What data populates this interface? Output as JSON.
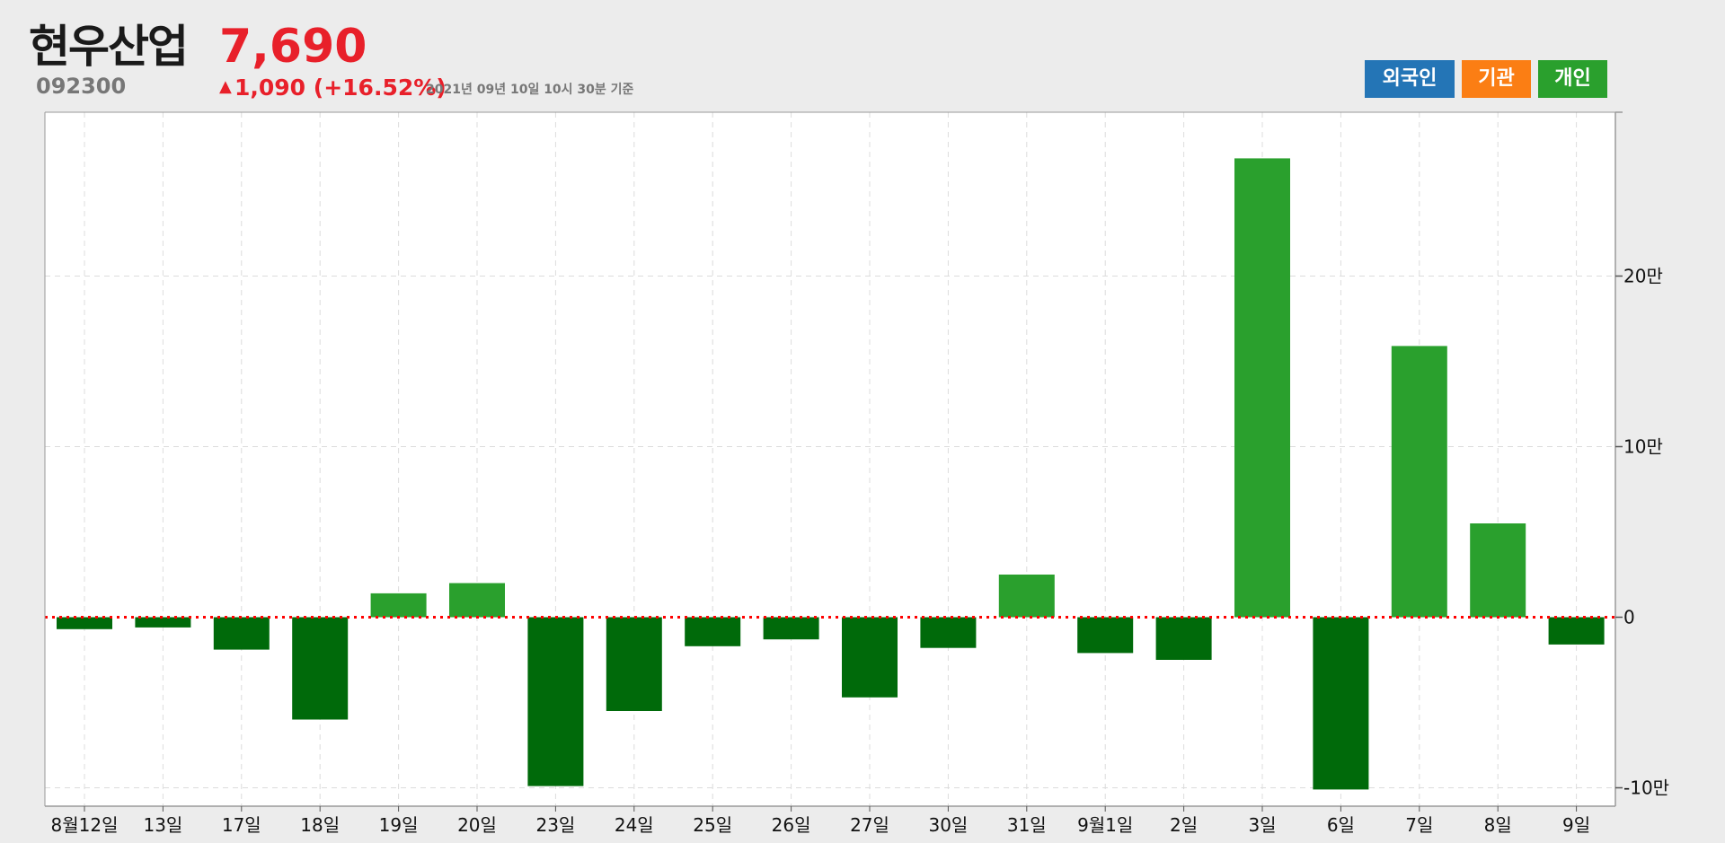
{
  "stock": {
    "name": "현우산업",
    "code": "092300",
    "price": "7,690",
    "change_arrow": "▲",
    "change": "1,090 (+16.52%)",
    "as_of": "2021년 09년 10일 10시 30분 기준"
  },
  "buttons": {
    "foreign": "외국인",
    "institution": "기관",
    "individual": "개인"
  },
  "colors": {
    "foreign": "#2475b6",
    "institution": "#fb7e14",
    "individual": "#2aa02d",
    "positive_bar": "#2aa02d",
    "negative_bar": "#006a0a",
    "zero_line": "#ff0000",
    "price_up": "#e8202a"
  },
  "chart_data": {
    "type": "bar",
    "series": [
      {
        "name": "개인",
        "values": [
          -7000,
          -6000,
          -19000,
          -60000,
          14000,
          20000,
          -99000,
          -55000,
          -17000,
          -13000,
          -47000,
          -18000,
          25000,
          -21000,
          -25000,
          269000,
          -101000,
          159000,
          55000,
          -16000
        ]
      }
    ],
    "categories": [
      "8월12일",
      "13일",
      "17일",
      "18일",
      "19일",
      "20일",
      "23일",
      "24일",
      "25일",
      "26일",
      "27일",
      "30일",
      "31일",
      "9월1일",
      "2일",
      "3일",
      "6일",
      "7일",
      "8일",
      "9일"
    ],
    "y_ticks": [
      {
        "value": 200000,
        "label": "20만"
      },
      {
        "value": 100000,
        "label": "10만"
      },
      {
        "value": 0,
        "label": "0"
      },
      {
        "value": -100000,
        "label": "-10만"
      }
    ],
    "ylim": [
      -111000,
      296000
    ],
    "grid": true,
    "y_axis_position": "right",
    "zero_line_style": "dotted"
  }
}
